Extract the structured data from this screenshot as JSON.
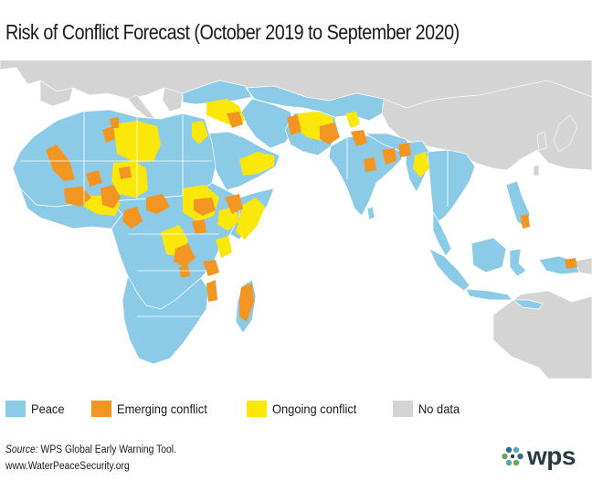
{
  "title": "Risk of Conflict Forecast (October 2019 to September 2020)",
  "legend": [
    {
      "label": "Peace",
      "color": "#8ccbe8"
    },
    {
      "label": "Emerging conflict",
      "color": "#f39522"
    },
    {
      "label": "Ongoing conflict",
      "color": "#fbe70a"
    },
    {
      "label": "No data",
      "color": "#d4d4d4"
    }
  ],
  "source": {
    "key": "Source:",
    "text": "WPS Global Early Warning Tool.",
    "url": "www.WaterPeaceSecurity.org"
  },
  "logo": {
    "text": "wps"
  }
}
